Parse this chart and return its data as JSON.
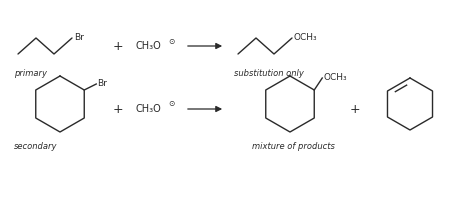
{
  "bg_color": "#ffffff",
  "line_color": "#2a2a2a",
  "figsize": [
    4.74,
    2.05
  ],
  "dpi": 100,
  "label_primary": "primary",
  "label_secondary": "secondary",
  "label_sub_only": "substitution only",
  "label_mixture": "mixture of products",
  "plus_sign": "+",
  "br_label": "Br",
  "och3_label": "OCH₃",
  "ch3o_label": "CH₃O",
  "circle_minus": "⊙"
}
